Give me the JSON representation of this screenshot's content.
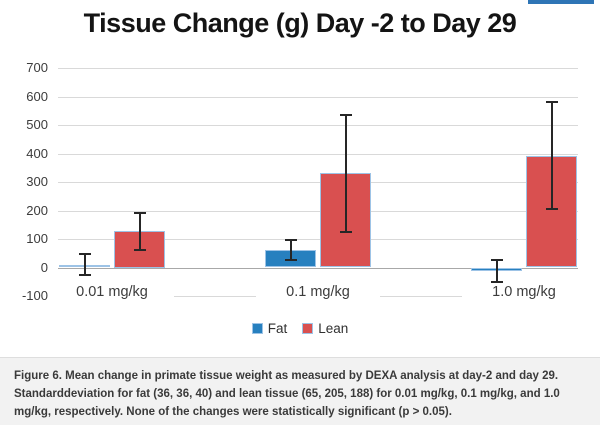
{
  "accent_bar": {
    "color": "#2E75B6"
  },
  "chart_data": {
    "type": "bar",
    "title": "Tissue Change (g) Day -2 to Day 29",
    "categories": [
      "0.01 mg/kg",
      "0.1 mg/kg",
      "1.0 mg/kg"
    ],
    "series": [
      {
        "name": "Fat",
        "color": "#2780BF",
        "values": [
          10,
          62,
          -12
        ],
        "error_sd": [
          36,
          36,
          40
        ]
      },
      {
        "name": "Lean",
        "color": "#D95050",
        "values": [
          128,
          330,
          392
        ],
        "error_sd": [
          65,
          205,
          188
        ]
      }
    ],
    "ylim": [
      -100,
      700
    ],
    "yticks": [
      700,
      600,
      500,
      400,
      300,
      200,
      100,
      0,
      -100
    ],
    "grid": true,
    "legend_position": "bottom",
    "colors": {
      "bar_border": "#9DC3E6",
      "gridline": "#D9D9D9",
      "zero_line": "#A8A8A8",
      "error_bar": "#262626"
    }
  },
  "caption": {
    "lines": [
      "Figure 6. Mean change in primate tissue weight as measured by DEXA analysis at day-2 and day 29.",
      "Standarddeviation for fat (36, 36, 40) and lean tissue (65, 205, 188) for 0.01 mg/kg, 0.1 mg/kg, and 1.0",
      "mg/kg, respectively. None of the changes were statistically significant (p > 0.05)."
    ]
  }
}
